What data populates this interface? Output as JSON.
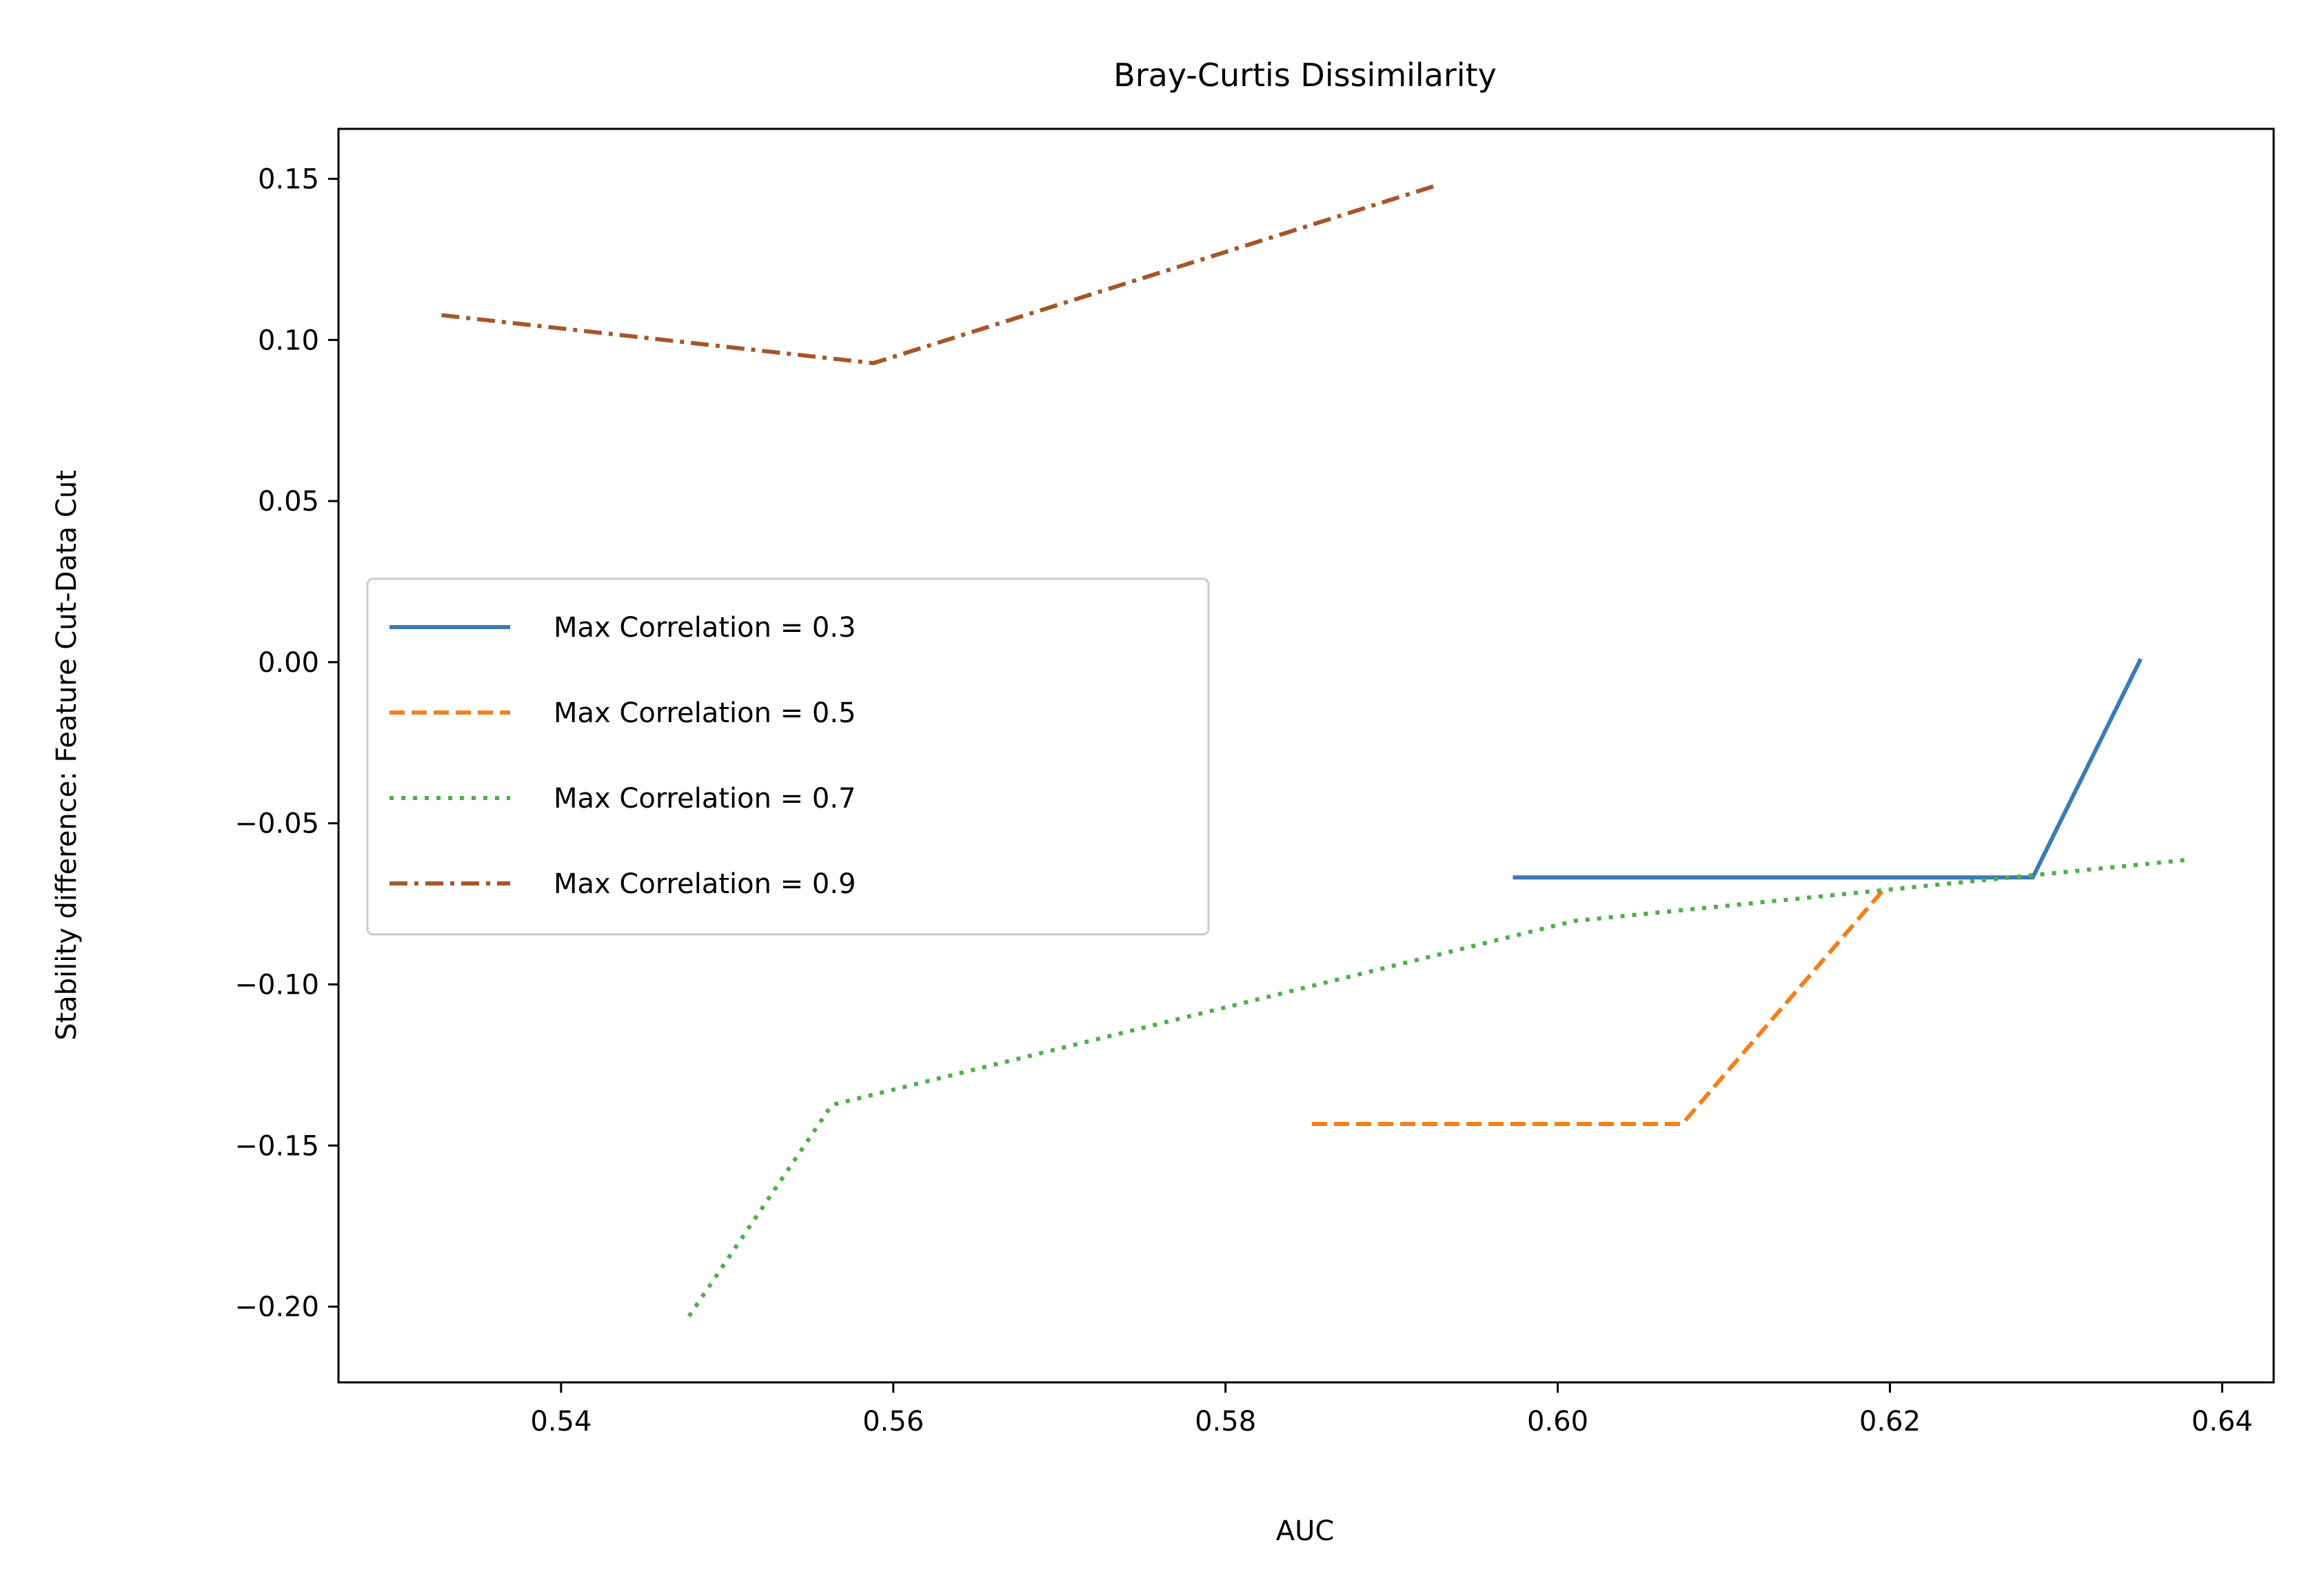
{
  "chart_data": {
    "type": "line",
    "title": "Bray-Curtis Dissimilarity",
    "xlabel": "AUC",
    "ylabel": "Stability difference: Feature Cut-Data Cut",
    "xlim": [
      0.5266,
      0.6431
    ],
    "ylim": [
      -0.2235,
      0.1655
    ],
    "xticks": [
      0.54,
      0.56,
      0.58,
      0.6,
      0.62,
      0.64
    ],
    "xtick_labels": [
      "0.54",
      "0.56",
      "0.58",
      "0.60",
      "0.62",
      "0.64"
    ],
    "yticks": [
      0.15,
      0.1,
      0.05,
      0.0,
      -0.05,
      -0.1,
      -0.15,
      -0.2
    ],
    "ytick_labels": [
      "0.15",
      "0.10",
      "0.05",
      "0.00",
      "−0.05",
      "−0.10",
      "−0.15",
      "−0.20"
    ],
    "grid": false,
    "legend_position": "center-left",
    "series": [
      {
        "name": "Max Correlation = 0.3",
        "color": "#3a7bb5",
        "style": "solid",
        "x": [
          0.5973,
          0.6286,
          0.6351
        ],
        "y": [
          -0.0668,
          -0.0668,
          0.001
        ]
      },
      {
        "name": "Max Correlation = 0.5",
        "color": "#f57f17",
        "style": "dashed",
        "x": [
          0.5852,
          0.6075,
          0.6196
        ],
        "y": [
          -0.1433,
          -0.1433,
          -0.0707
        ]
      },
      {
        "name": "Max Correlation = 0.7",
        "color": "#4daf4a",
        "style": "dotted",
        "x": [
          0.5477,
          0.5563,
          0.601,
          0.6378
        ],
        "y": [
          -0.203,
          -0.1374,
          -0.0803,
          -0.0614
        ]
      },
      {
        "name": "Max Correlation = 0.9",
        "color": "#a65628",
        "style": "dashdot",
        "x": [
          0.5328,
          0.5588,
          0.5926
        ],
        "y": [
          0.1077,
          0.0928,
          0.1478
        ]
      }
    ]
  }
}
